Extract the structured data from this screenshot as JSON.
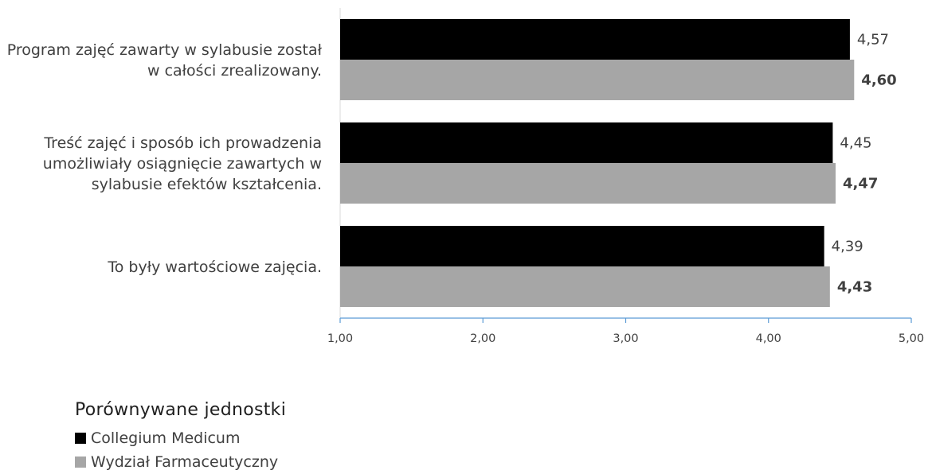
{
  "chart_data": {
    "type": "bar",
    "orientation": "horizontal",
    "categories": [
      [
        "Program zajęć zawarty w sylabusie został",
        "w całości zrealizowany."
      ],
      [
        "Treść zajęć i sposób ich prowadzenia",
        "umożliwiały osiągnięcie zawartych w",
        "sylabusie efektów kształcenia."
      ],
      [
        "To były wartościowe zajęcia."
      ]
    ],
    "series": [
      {
        "name": "Collegium Medicum",
        "color": "#000000",
        "values": [
          4.57,
          4.45,
          4.39
        ],
        "labels": [
          "4,57",
          "4,45",
          "4,39"
        ],
        "label_bold": false
      },
      {
        "name": "Wydział Farmaceutyczny",
        "color": "#a6a6a6",
        "values": [
          4.6,
          4.47,
          4.43
        ],
        "labels": [
          "4,60",
          "4,47",
          "4,43"
        ],
        "label_bold": true
      }
    ],
    "xlim": [
      1.0,
      5.0
    ],
    "ticks": [
      1,
      2,
      3,
      4,
      5
    ],
    "tick_labels": [
      "1,00",
      "2,00",
      "3,00",
      "4,00",
      "5,00"
    ],
    "axis_color": "#5b9bd5",
    "grid": false,
    "legend": {
      "title": "Porównywane jednostki",
      "position": "bottom-left"
    }
  }
}
